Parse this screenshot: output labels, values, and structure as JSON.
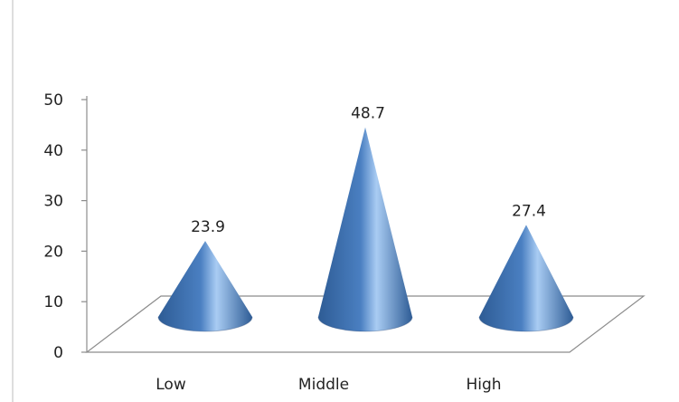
{
  "chart_data": {
    "type": "bar",
    "shape": "cone",
    "categories": [
      "Low",
      "Middle",
      "High"
    ],
    "values": [
      23.9,
      48.7,
      27.4
    ],
    "data_labels": [
      "23.9",
      "48.7",
      "27.4"
    ],
    "y_ticks": [
      "0",
      "10",
      "20",
      "30",
      "40",
      "50"
    ],
    "ylim": [
      0,
      50
    ],
    "grid": false,
    "legend": "none",
    "title": "",
    "xlabel": "",
    "ylabel": "",
    "colors": {
      "cone_dark": "#2e5c95",
      "cone_mid": "#4a7fc1",
      "cone_light": "#a9ccf3",
      "axis": "#8c8c8c",
      "floor": "#ffffff"
    }
  }
}
